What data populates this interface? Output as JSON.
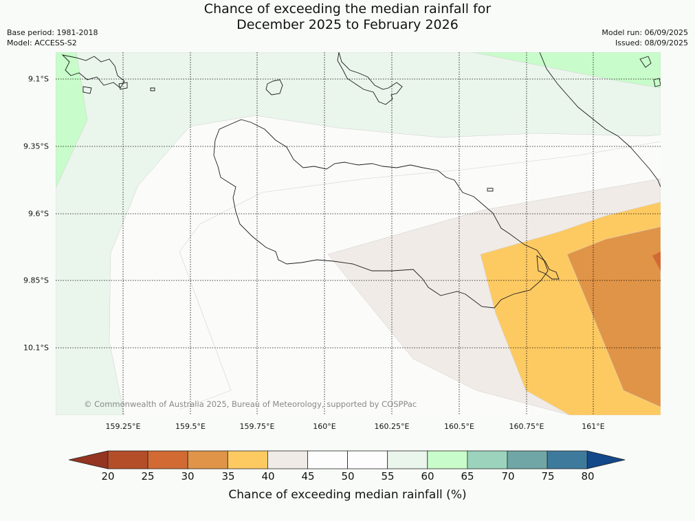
{
  "title": {
    "line1": "Chance of exceeding the median rainfall for",
    "line2": "December 2025 to February 2026"
  },
  "meta": {
    "base_period": "Base period: 1981-2018",
    "model": "Model: ACCESS-S2",
    "model_run": "Model run: 06/09/2025",
    "issued": "Issued: 08/09/2025"
  },
  "map": {
    "lat_labels": [
      "9.1°S",
      "9.35°S",
      "9.6°S",
      "9.85°S",
      "10.1°S"
    ],
    "lon_labels": [
      "159.25°E",
      "159.5°E",
      "159.75°E",
      "160°E",
      "160.25°E",
      "160.5°E",
      "160.75°E",
      "161°E"
    ],
    "copyright": "© Commonwealth of Australia 2025, Bureau of Meteorology, supported by COSPPac",
    "zone_colors": {
      "p55_60": "#eaf5ec",
      "p60_65": "#c8fcca",
      "p50_55": "#fbfcfa",
      "p40_45": "#f0ebe6",
      "p35_40": "#fdca62",
      "p30_35": "#e09447",
      "p25_30": "#d26a34"
    }
  },
  "colorbar": {
    "ticks": [
      "20",
      "25",
      "30",
      "35",
      "40",
      "45",
      "50",
      "55",
      "60",
      "65",
      "70",
      "75",
      "80"
    ],
    "colors": [
      "#933521",
      "#b44e28",
      "#d26a34",
      "#e09447",
      "#fdca62",
      "#f0ebe6",
      "#fcfdfc",
      "#fcfdfc",
      "#eaf5ec",
      "#c8fcca",
      "#9cd3bd",
      "#70a6a6",
      "#3e7a9b",
      "#13488a"
    ],
    "label": "Chance of exceeding median rainfall (%)"
  }
}
